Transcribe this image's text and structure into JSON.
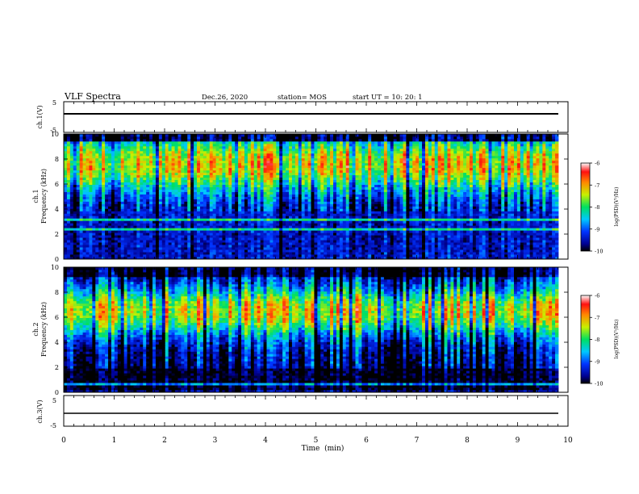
{
  "header": {
    "title": "VLF Spectra",
    "date": "Dec.26, 2020",
    "station": "station= MOS",
    "start_ut": "start  UT  =    10: 20: 1"
  },
  "chart_data": [
    {
      "type": "line",
      "panel": "ch1_waveform",
      "ylabel": "ch.1(V)",
      "ylim": [
        -5,
        5
      ],
      "y_ticks": [
        "5",
        "-5"
      ],
      "x": [
        0,
        10
      ],
      "series": [
        {
          "values": [
            0,
            0
          ]
        }
      ]
    },
    {
      "type": "heatmap",
      "panel": "ch1_spectrogram",
      "ylabel_line1": "ch.1",
      "ylabel_line2": "Frequency (kHz)",
      "xlim": [
        0,
        9.85
      ],
      "ylim": [
        0,
        10
      ],
      "y_ticks": [
        "0",
        "2",
        "4",
        "6",
        "8",
        "10"
      ],
      "colorbar": {
        "label": "log(PSD)(V²/Hz)",
        "range": [
          -10,
          -6
        ],
        "ticks": [
          "-6",
          "-7",
          "-8",
          "-9",
          "-10"
        ]
      },
      "profile": {
        "base": -9.4,
        "hump_center_khz": 7.6,
        "hump_width_khz": 2.2,
        "hump_amp": 2.2,
        "low_band_khz": [
          0.4,
          3.8
        ],
        "low_band_level": -9.3,
        "top_roll_off_khz": 9.4
      }
    },
    {
      "type": "heatmap",
      "panel": "ch2_spectrogram",
      "ylabel_line1": "ch.2",
      "ylabel_line2": "Frequency (kHz)",
      "xlim": [
        0,
        9.85
      ],
      "ylim": [
        0,
        10
      ],
      "y_ticks": [
        "0",
        "2",
        "4",
        "6",
        "8",
        "10"
      ],
      "colorbar": {
        "label": "log(PSD)(V²/Hz)",
        "range": [
          -10,
          -6
        ],
        "ticks": [
          "-6",
          "-7",
          "-8",
          "-9",
          "-10"
        ]
      },
      "profile": {
        "base": -9.5,
        "hump_center_khz": 6.5,
        "hump_width_khz": 2.0,
        "hump_amp": 2.3,
        "low_band_khz": [
          0.2,
          2.0
        ],
        "low_band_level": -9.9,
        "top_roll_off_khz": 9.2
      }
    },
    {
      "type": "line",
      "panel": "ch3_waveform",
      "ylabel": "ch.3(V)",
      "ylim": [
        -5,
        5
      ],
      "y_ticks": [
        "5",
        "-5"
      ],
      "x": [
        0,
        10
      ],
      "series": [
        {
          "values": [
            0,
            0
          ]
        }
      ]
    }
  ],
  "x_axis": {
    "xlabel": "Time  (min)",
    "xlim": [
      0,
      10
    ],
    "ticks": [
      "0",
      "1",
      "2",
      "3",
      "4",
      "5",
      "6",
      "7",
      "8",
      "9",
      "10"
    ]
  }
}
